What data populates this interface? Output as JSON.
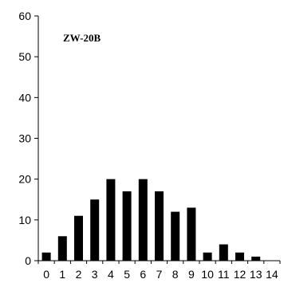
{
  "chart_data": {
    "type": "bar",
    "title": "",
    "xlabel": "",
    "ylabel": "",
    "annotation": "ZW-20B",
    "categories": [
      "0",
      "1",
      "2",
      "3",
      "4",
      "5",
      "6",
      "7",
      "8",
      "9",
      "10",
      "11",
      "12",
      "13",
      "14"
    ],
    "values": [
      2,
      6,
      11,
      15,
      20,
      17,
      20,
      17,
      12,
      13,
      2,
      4,
      2,
      1,
      0
    ],
    "ylim": [
      0,
      60
    ],
    "yticks": [
      0,
      10,
      20,
      30,
      40,
      50,
      60
    ],
    "grid": false,
    "legend": "none",
    "colors": {
      "bar": "#000000",
      "axis": "#000000",
      "background": "#ffffff"
    }
  }
}
